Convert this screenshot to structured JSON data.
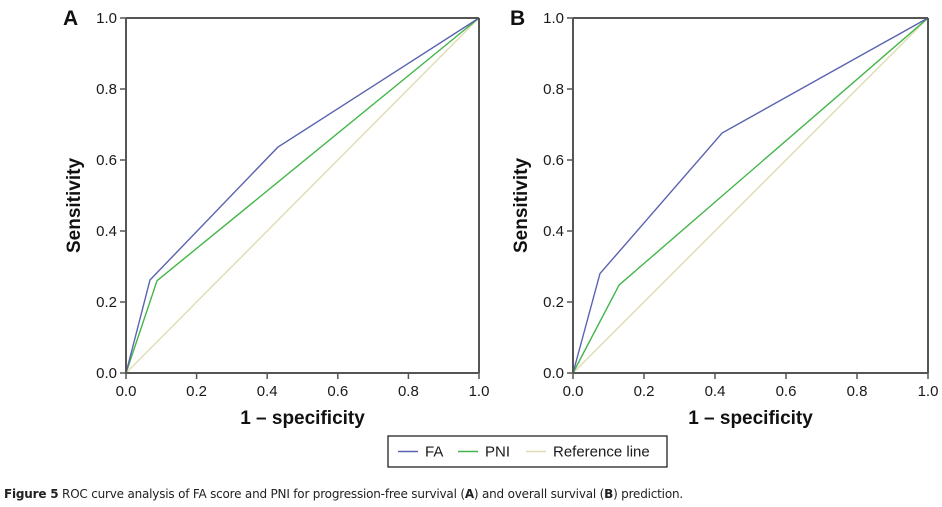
{
  "chart_data": [
    {
      "type": "line",
      "panel_label": "A",
      "title": "",
      "xlabel": "1 – specificity",
      "ylabel": "Sensitivity",
      "xlim": [
        0,
        1
      ],
      "ylim": [
        0,
        1
      ],
      "xticks": [
        "0.0",
        "0.2",
        "0.4",
        "0.6",
        "0.8",
        "1.0"
      ],
      "yticks": [
        "0.0",
        "0.2",
        "0.4",
        "0.6",
        "0.8",
        "1.0"
      ],
      "grid": false,
      "series": [
        {
          "name": "FA",
          "color": "#5b63b0",
          "x": [
            0,
            0.068,
            0.43,
            1
          ],
          "y": [
            0,
            0.262,
            0.636,
            1
          ]
        },
        {
          "name": "PNI",
          "color": "#43b54a",
          "x": [
            0,
            0.088,
            1
          ],
          "y": [
            0,
            0.26,
            1
          ]
        },
        {
          "name": "Reference line",
          "color": "#e0dcb4",
          "x": [
            0,
            1
          ],
          "y": [
            0,
            1
          ]
        }
      ]
    },
    {
      "type": "line",
      "panel_label": "B",
      "title": "",
      "xlabel": "1 – specificity",
      "ylabel": "Sensitivity",
      "xlim": [
        0,
        1
      ],
      "ylim": [
        0,
        1
      ],
      "xticks": [
        "0.0",
        "0.2",
        "0.4",
        "0.6",
        "0.8",
        "1.0"
      ],
      "yticks": [
        "0.0",
        "0.2",
        "0.4",
        "0.6",
        "0.8",
        "1.0"
      ],
      "grid": false,
      "series": [
        {
          "name": "FA",
          "color": "#5b63b0",
          "x": [
            0,
            0.076,
            0.42,
            1
          ],
          "y": [
            0,
            0.28,
            0.676,
            1
          ]
        },
        {
          "name": "PNI",
          "color": "#43b54a",
          "x": [
            0,
            0.13,
            1
          ],
          "y": [
            0,
            0.248,
            1
          ]
        },
        {
          "name": "Reference line",
          "color": "#e0dcb4",
          "x": [
            0,
            1
          ],
          "y": [
            0,
            1
          ]
        }
      ]
    }
  ],
  "legend": {
    "placement": "bottom-center",
    "items": [
      {
        "label": "FA",
        "color": "#5b63b0"
      },
      {
        "label": "PNI",
        "color": "#43b54a"
      },
      {
        "label": "Reference line",
        "color": "#e0dcb4"
      }
    ]
  },
  "caption": {
    "prefix": "Figure 5",
    "text1": " ROC curve analysis of FA score and PNI for progression-free survival (",
    "bold1": "A",
    "text2": ") and overall survival (",
    "bold2": "B",
    "text3": ") prediction."
  }
}
